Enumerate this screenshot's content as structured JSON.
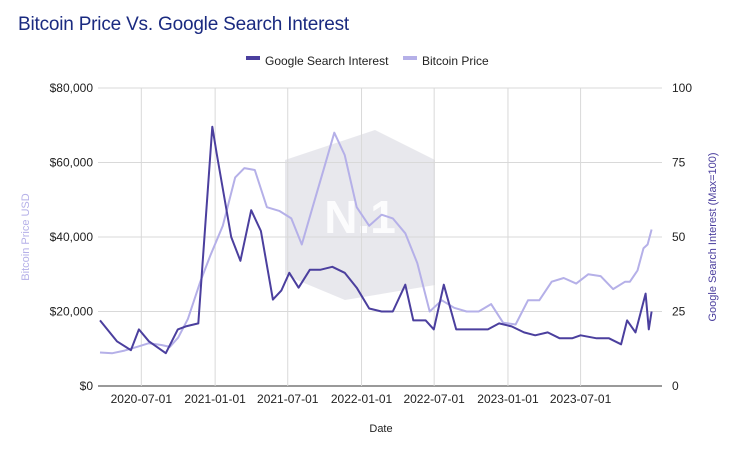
{
  "title": "Bitcoin Price Vs. Google Search Interest",
  "colors": {
    "search": "#4b3f9e",
    "price": "#b5b0e8",
    "grid": "#d9d9d9",
    "watermark": "#d6d6de"
  },
  "watermark_text": "N.1",
  "chart_data": {
    "type": "line",
    "title": "Bitcoin Price Vs. Google Search Interest",
    "xlabel": "Date",
    "ylabel_left": "Bitcoin Price USD",
    "ylabel_right": "Google Search Interest (Max=100)",
    "x_ticks": [
      "2020-07-01",
      "2021-01-01",
      "2021-07-01",
      "2022-01-01",
      "2022-07-01",
      "2023-01-01",
      "2023-07-01"
    ],
    "y_left_ticks": [
      "$0",
      "$20,000",
      "$40,000",
      "$60,000",
      "$80,000"
    ],
    "y_right_ticks": [
      "0",
      "25",
      "50",
      "75",
      "100"
    ],
    "y_left_range": [
      0,
      80000
    ],
    "y_right_range": [
      0,
      100
    ],
    "x_range": [
      "2020-03-15",
      "2024-01-20"
    ],
    "legend": "top",
    "grid": true,
    "series": [
      {
        "name": "Google Search Interest",
        "axis": "right",
        "x": [
          "2020-03-20",
          "2020-05-01",
          "2020-06-05",
          "2020-06-25",
          "2020-07-20",
          "2020-08-31",
          "2020-09-30",
          "2020-10-20",
          "2020-11-20",
          "2020-12-25",
          "2021-01-05",
          "2021-02-10",
          "2021-03-05",
          "2021-04-01",
          "2021-04-25",
          "2021-05-25",
          "2021-06-15",
          "2021-07-05",
          "2021-07-28",
          "2021-08-25",
          "2021-09-20",
          "2021-10-20",
          "2021-11-20",
          "2021-12-20",
          "2022-01-20",
          "2022-02-20",
          "2022-03-20",
          "2022-04-20",
          "2022-05-10",
          "2022-06-10",
          "2022-06-30",
          "2022-07-25",
          "2022-08-25",
          "2022-09-25",
          "2022-10-20",
          "2022-11-12",
          "2022-12-10",
          "2023-01-10",
          "2023-02-10",
          "2023-03-10",
          "2023-04-10",
          "2023-05-10",
          "2023-06-10",
          "2023-07-01",
          "2023-08-10",
          "2023-09-10",
          "2023-10-10",
          "2023-10-25",
          "2023-11-15",
          "2023-12-10",
          "2023-12-18",
          "2023-12-25"
        ],
        "values": [
          22,
          15,
          12,
          19,
          15,
          11,
          19,
          20,
          21,
          87,
          78,
          50,
          42,
          59,
          52,
          29,
          32,
          38,
          33,
          39,
          39,
          40,
          38,
          33,
          26,
          25,
          25,
          34,
          22,
          22,
          19,
          34,
          19,
          19,
          19,
          19,
          21,
          20,
          18,
          17,
          18,
          16,
          16,
          17,
          16,
          16,
          14,
          22,
          18,
          31,
          19,
          25
        ]
      },
      {
        "name": "Bitcoin Price",
        "axis": "left",
        "x": [
          "2020-03-20",
          "2020-04-20",
          "2020-05-20",
          "2020-06-20",
          "2020-07-20",
          "2020-08-20",
          "2020-09-10",
          "2020-10-01",
          "2020-10-25",
          "2020-11-25",
          "2020-12-20",
          "2021-01-20",
          "2021-02-20",
          "2021-03-15",
          "2021-04-10",
          "2021-05-10",
          "2021-06-10",
          "2021-07-10",
          "2021-08-05",
          "2021-09-01",
          "2021-10-01",
          "2021-10-25",
          "2021-11-20",
          "2021-12-20",
          "2022-01-20",
          "2022-02-20",
          "2022-03-20",
          "2022-04-20",
          "2022-05-20",
          "2022-06-20",
          "2022-07-20",
          "2022-08-20",
          "2022-09-20",
          "2022-10-20",
          "2022-11-20",
          "2022-12-20",
          "2023-01-20",
          "2023-02-20",
          "2023-03-20",
          "2023-04-20",
          "2023-05-20",
          "2023-06-20",
          "2023-07-20",
          "2023-08-20",
          "2023-09-20",
          "2023-10-20",
          "2023-11-01",
          "2023-11-20",
          "2023-12-05",
          "2023-12-15",
          "2023-12-25"
        ],
        "values": [
          9000,
          8800,
          9500,
          10500,
          11500,
          11000,
          10500,
          13000,
          18000,
          28000,
          35000,
          43000,
          56000,
          58500,
          58000,
          48000,
          47000,
          45000,
          38000,
          48000,
          59000,
          68000,
          62000,
          48000,
          43000,
          46000,
          45000,
          41000,
          33000,
          20000,
          23000,
          21000,
          20000,
          20000,
          22000,
          17000,
          16500,
          23000,
          23000,
          28000,
          29000,
          27500,
          30000,
          29500,
          26000,
          28000,
          28000,
          31000,
          37000,
          38000,
          42000
        ]
      }
    ]
  }
}
